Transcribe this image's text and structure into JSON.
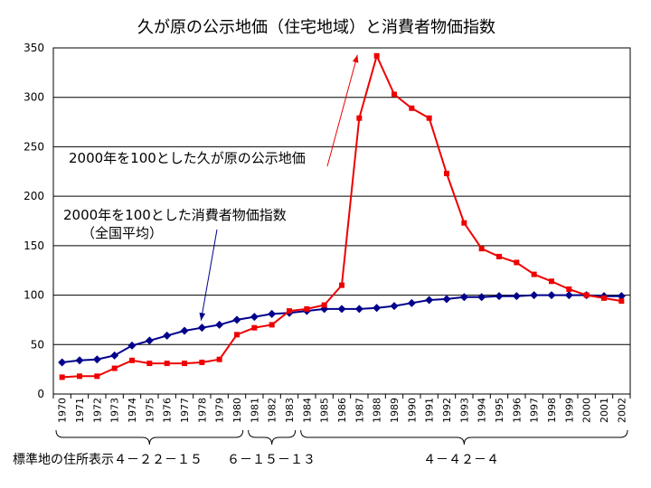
{
  "chart_data": {
    "type": "line",
    "title": "久が原の公示地価（住宅地域）と消費者物価指数",
    "ylim": [
      0,
      350
    ],
    "yticks": [
      0,
      50,
      100,
      150,
      200,
      250,
      300,
      350
    ],
    "grid": true,
    "x": [
      "1970",
      "1971",
      "1972",
      "1973",
      "1974",
      "1975",
      "1976",
      "1977",
      "1978",
      "1979",
      "1980",
      "1981",
      "1982",
      "1983",
      "1984",
      "1985",
      "1986",
      "1987",
      "1988",
      "1989",
      "1990",
      "1991",
      "1992",
      "1993",
      "1994",
      "1995",
      "1996",
      "1997",
      "1998",
      "1999",
      "2000",
      "2001",
      "2002"
    ],
    "series": [
      {
        "name": "2000年を100とした消費者物価指数（全国平均）",
        "color": "#00008b",
        "marker": "diamond",
        "values": [
          32,
          34,
          35,
          39,
          49,
          54,
          59,
          64,
          67,
          70,
          75,
          78,
          81,
          82,
          84,
          86,
          86,
          86,
          87,
          89,
          92,
          95,
          96,
          98,
          98,
          99,
          99,
          100,
          100,
          100,
          100,
          99,
          99
        ]
      },
      {
        "name": "2000年を100とした久が原の公示地価",
        "color": "#ee0000",
        "marker": "square",
        "values": [
          17,
          18,
          18,
          26,
          34,
          31,
          31,
          31,
          32,
          35,
          60,
          67,
          70,
          84,
          86,
          90,
          110,
          279,
          342,
          303,
          289,
          279,
          223,
          173,
          147,
          139,
          133,
          121,
          114,
          106,
          100,
          97,
          94
        ]
      }
    ],
    "annotations": [
      {
        "text": "2000年を100とした久が原の公示地価",
        "series": 1,
        "point_index": 17
      },
      {
        "text_lines": [
          "2000年を100とした消費者物価指数",
          "（全国平均）"
        ],
        "series": 0,
        "point_index": 8
      }
    ],
    "bottom_label": "標準地の住所表示",
    "address_groups": [
      {
        "label": "４－２２－１５",
        "from": "1970",
        "to": "1980"
      },
      {
        "label": "６－１５－１３",
        "from": "1981",
        "to": "1983"
      },
      {
        "label": "４－４２－４",
        "from": "1984",
        "to": "2002"
      }
    ]
  }
}
